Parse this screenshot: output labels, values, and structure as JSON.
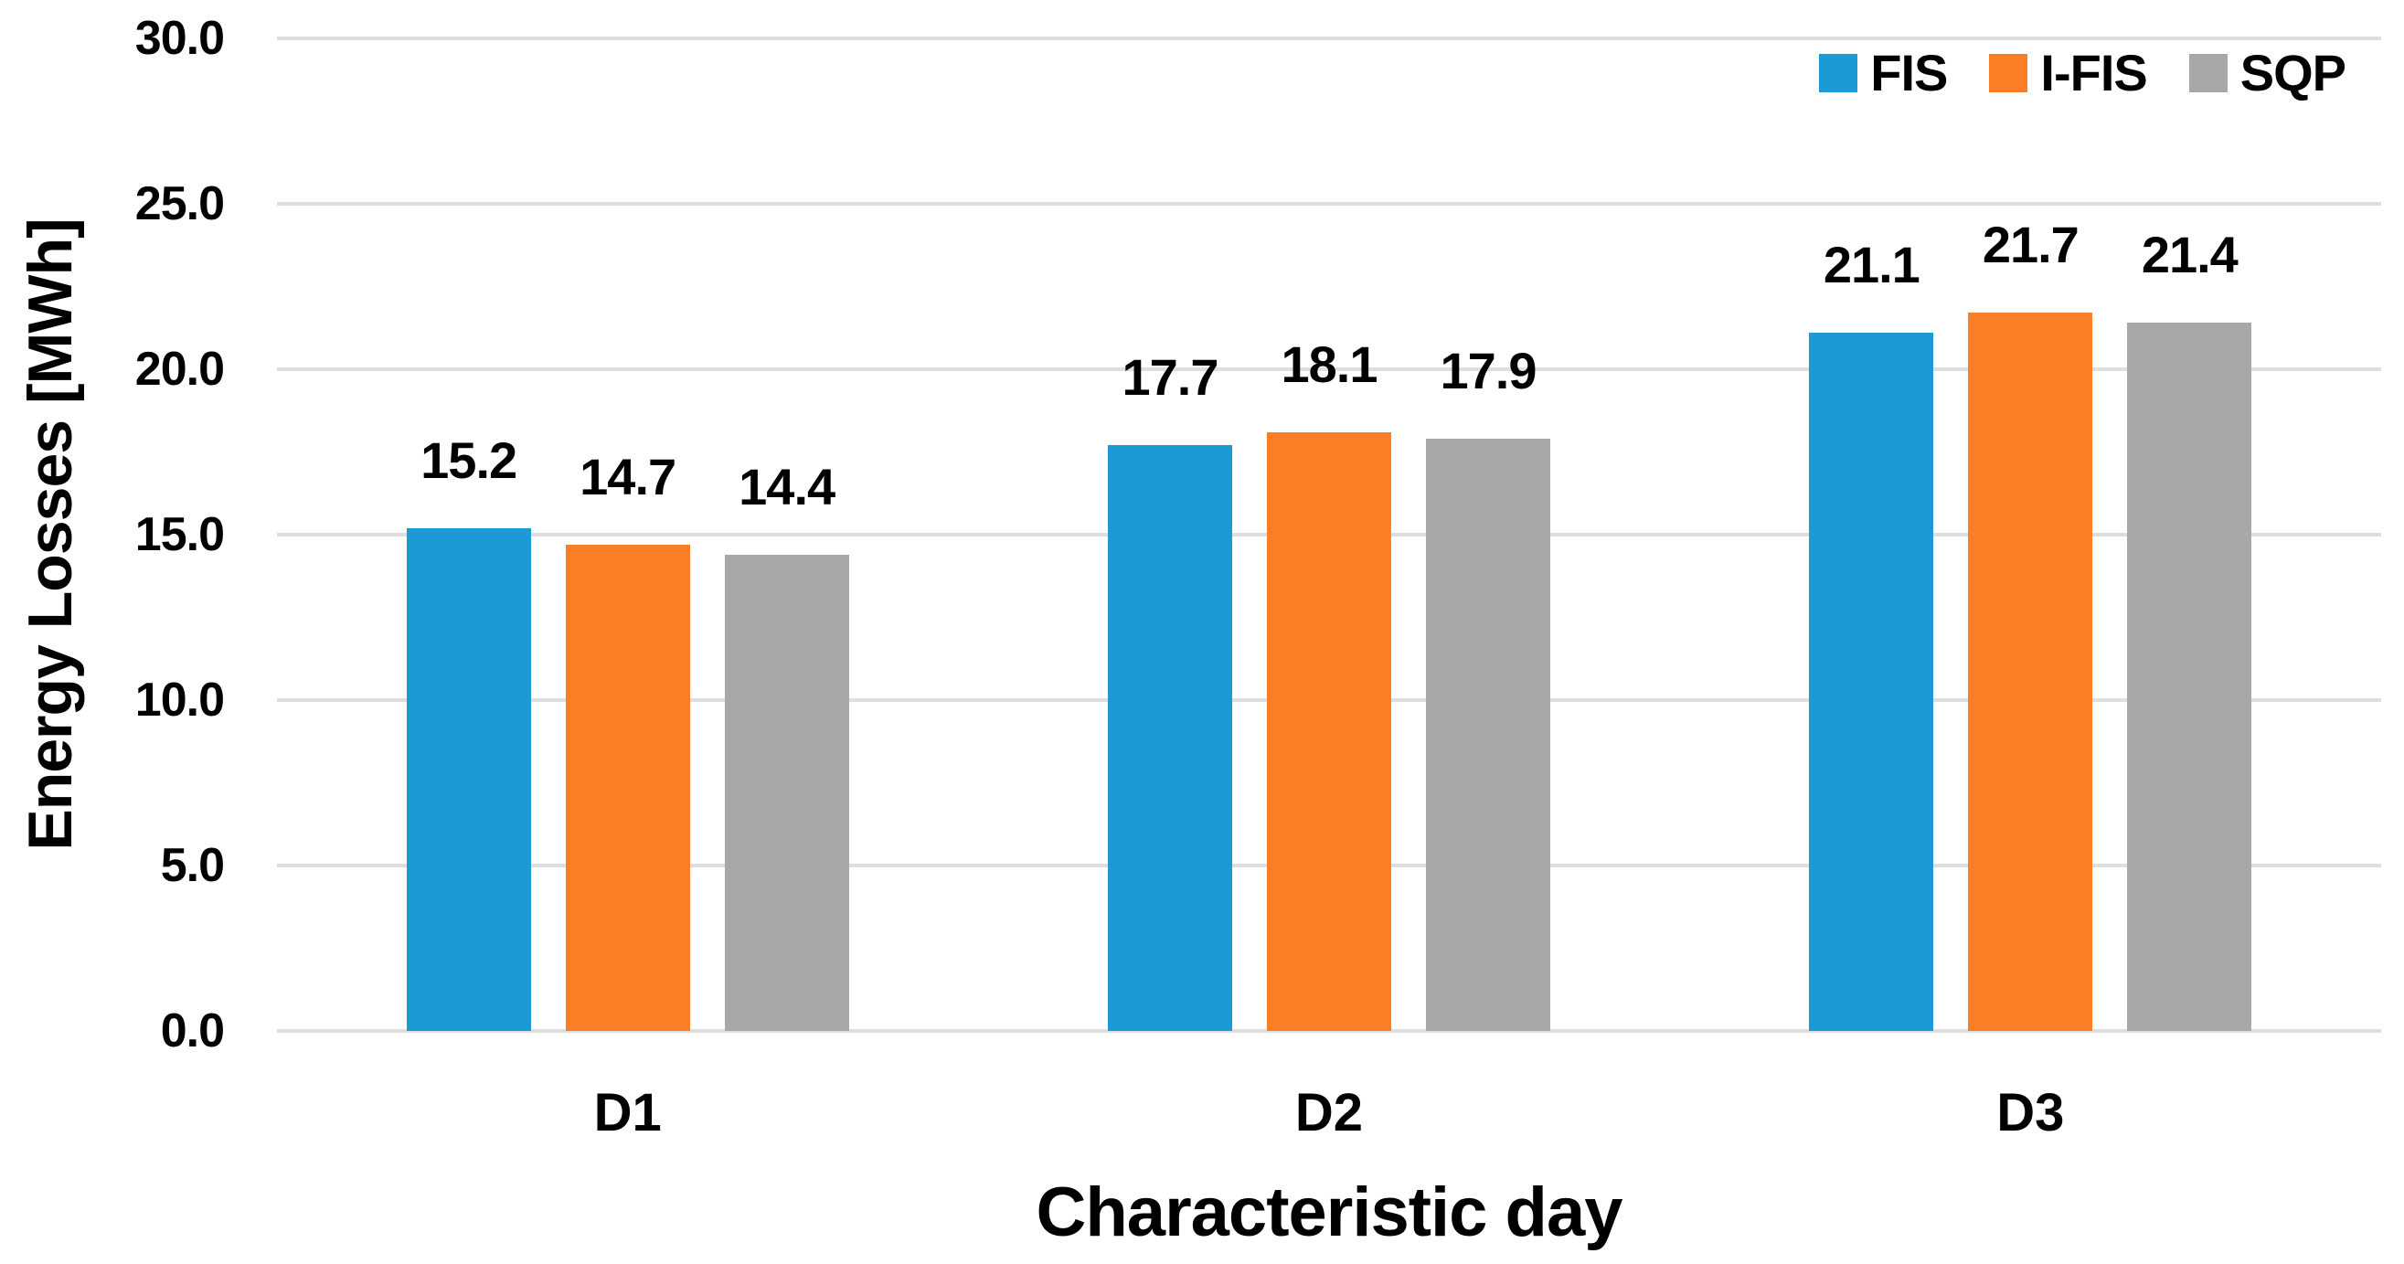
{
  "chart_data": {
    "type": "bar",
    "title": "",
    "xlabel": "Characteristic day",
    "ylabel": "Energy Losses [MWh]",
    "categories": [
      "D1",
      "D2",
      "D3"
    ],
    "series": [
      {
        "name": "FIS",
        "color": "#1C9AD6",
        "values": [
          15.2,
          17.7,
          21.1
        ]
      },
      {
        "name": "I-FIS",
        "color": "#FB7D26",
        "values": [
          14.7,
          18.1,
          21.7
        ]
      },
      {
        "name": "SQP",
        "color": "#A8A8A8",
        "values": [
          14.4,
          17.9,
          21.4
        ]
      }
    ],
    "ylim": [
      0,
      30
    ],
    "ytick_step": 5,
    "ytick_labels": [
      "0.0",
      "5.0",
      "10.0",
      "15.0",
      "20.0",
      "25.0",
      "30.0"
    ],
    "value_labels_shown": true,
    "grid": true,
    "legend_position": "top-right-inside",
    "colors": {
      "gridline": "#DEDEDE",
      "text": "#000000",
      "background": "#FFFFFF"
    }
  }
}
